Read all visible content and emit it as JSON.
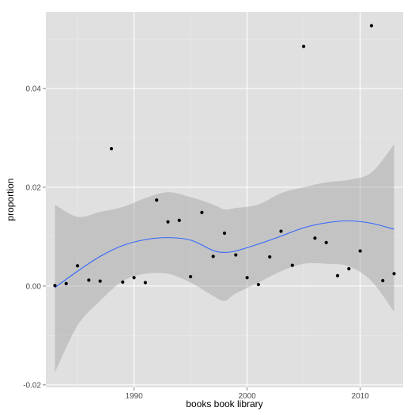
{
  "chart_data": {
    "type": "scatter",
    "title": "",
    "xlabel": "books book library",
    "ylabel": "proportion",
    "xlim": [
      1982.2,
      2013.8
    ],
    "ylim": [
      -0.0205,
      0.0555
    ],
    "x_ticks": [
      1990,
      2000,
      2010
    ],
    "x_tick_labels": [
      "1990",
      "2000",
      "2010"
    ],
    "y_ticks": [
      -0.02,
      0.0,
      0.02,
      0.04
    ],
    "y_tick_labels": [
      "-0.02",
      "0.00",
      "0.02",
      "0.04"
    ],
    "grid": true,
    "colors": {
      "panel_background": "#e0e0e0",
      "grid_major": "#ffffff",
      "grid_minor": "#ebebeb",
      "points": "#000000",
      "smooth_line": "#3366ff",
      "confidence_band": "#999999"
    },
    "series": [
      {
        "kind": "points",
        "x": [
          1983,
          1984,
          1985,
          1986,
          1987,
          1988,
          1989,
          1990,
          1991,
          1992,
          1993,
          1994,
          1995,
          1996,
          1997,
          1998,
          1999,
          2000,
          2001,
          2002,
          2003,
          2004,
          2005,
          2006,
          2007,
          2008,
          2009,
          2010,
          2011,
          2012,
          2013
        ],
        "y": [
          0.0001,
          0.0005,
          0.0041,
          0.0012,
          0.001,
          0.0278,
          0.0008,
          0.0017,
          0.0007,
          0.0174,
          0.013,
          0.0133,
          0.0019,
          0.0149,
          0.006,
          0.0107,
          0.0063,
          0.0017,
          0.0003,
          0.0059,
          0.0111,
          0.0042,
          0.0485,
          0.0097,
          0.0088,
          0.0021,
          0.0035,
          0.0071,
          0.0527,
          0.0011,
          0.0025
        ]
      },
      {
        "kind": "smooth",
        "x": [
          1983,
          1985,
          1987,
          1989,
          1991,
          1993,
          1995,
          1997,
          1998,
          1999,
          2001,
          2003,
          2005,
          2007,
          2009,
          2011,
          2013
        ],
        "y": [
          -0.0003,
          0.003,
          0.006,
          0.0082,
          0.0094,
          0.0098,
          0.0093,
          0.0072,
          0.0068,
          0.0071,
          0.0085,
          0.0101,
          0.0118,
          0.0128,
          0.0132,
          0.0127,
          0.0115
        ],
        "lower": [
          -0.0175,
          -0.008,
          -0.003,
          0.001,
          0.0025,
          0.0025,
          0.0007,
          -0.002,
          -0.003,
          -0.0015,
          0.0007,
          0.003,
          0.0045,
          0.0045,
          0.004,
          0.001,
          -0.0052
        ],
        "upper": [
          0.0165,
          0.014,
          0.015,
          0.016,
          0.0178,
          0.019,
          0.018,
          0.0165,
          0.0155,
          0.0158,
          0.0165,
          0.0188,
          0.02,
          0.021,
          0.0215,
          0.023,
          0.0287
        ]
      }
    ]
  }
}
